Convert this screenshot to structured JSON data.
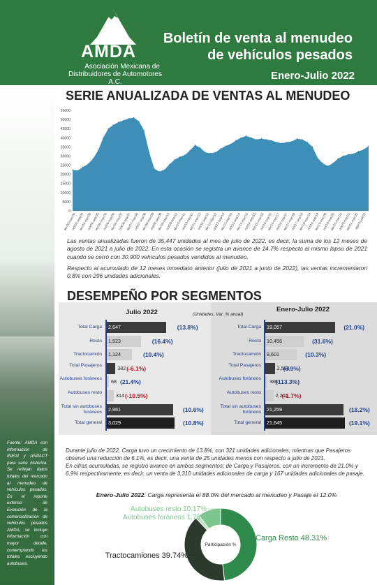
{
  "header": {
    "logo_text": "AMDA",
    "logo_sub1": "Asociación Mexicana de",
    "logo_sub2": "Distribuidores de Automotores A.C.",
    "title_line1": "Boletín de venta al menudeo",
    "title_line2": "de vehículos pesados",
    "period": "Enero-Julio 2022"
  },
  "colors": {
    "brand_green": "#2f7a3f",
    "area_blue": "#3d8fb8",
    "dark_bar": "#3a3a3a",
    "light_bar": "#cfcfcf",
    "label_blue": "#1f3f8f",
    "negative_red": "#b0122a"
  },
  "source_note": "Fuente: AMDA con información de INEGI y ANPACT para serie histórica. Se reflejan datos totales del mercado al menudeo de vehículos pesados. En el reporte extenso de Evolución de la comercialización de vehículos pesados AMDA, se incluye información con mayor detalle, contemplando los totales excluyendo autobuses.",
  "section1": {
    "title": "SERIE ANUALIZADA DE VENTAS AL MENUDEO",
    "paragraph": "Las ventas anualizadas fueron de 35,447 unidades al mes de julio de 2022, es decir, la suma de los 12 meses de agosto de 2021 a julio de 2022. En esta ocasión se registra un avance de 14.7% respecto al mismo lapso de 2021 cuando se cerró con 30,900 vehículos pesados vendidos al menudeo.",
    "paragraph2": "Respecto al acumulado de 12 meses inmediato anterior (julio  de 2021 a junio de 2022), las ventas incrementaron 0.8% con 296 unidades adicionales."
  },
  "section2": {
    "title": "DESEMPEÑO POR SEGMENTOS",
    "col_left": "Julio 2022",
    "col_right": "Enero-Julio 2022",
    "unit_note": "(Unidades, Var. % anual)",
    "rows": [
      {
        "label": "Total Carga",
        "jul_val": "2,647",
        "jul_pct": "(13.8%)",
        "acc_val": "19,057",
        "acc_pct": "(21.0%)",
        "jul_num": 2647,
        "acc_num": 19057,
        "dark": true
      },
      {
        "label": "Resto",
        "jul_val": "1,523",
        "jul_pct": "(16.4%)",
        "acc_val": "10,456",
        "acc_pct": "(31.6%)",
        "jul_num": 1523,
        "acc_num": 10456,
        "dark": false
      },
      {
        "label": "Tractocamión",
        "jul_val": "1,124",
        "jul_pct": "(10.4%)",
        "acc_val": "8,601",
        "acc_pct": "(10.3%)",
        "jul_num": 1124,
        "acc_num": 8601,
        "dark": false
      },
      {
        "label": "Total Pasajeros",
        "jul_val": "382",
        "jul_pct": "(-6.1%)",
        "acc_val": "2,588",
        "acc_pct": "(6.9%)",
        "jul_num": 382,
        "acc_num": 2588,
        "dark": true,
        "jul_neg": true
      },
      {
        "label": "Autobuses foráneos",
        "label_acc": "Autobuses foráneos",
        "jul_val": "68",
        "jul_pct": "(21.4%)",
        "acc_val": "386",
        "acc_pct": "(113.3%)",
        "jul_num": 68,
        "acc_num": 386,
        "dark": false
      },
      {
        "label": "Autobuses resto",
        "jul_val": "314",
        "jul_pct": "(-10.5%)",
        "acc_val": "2,202",
        "acc_pct": "(-1.7%)",
        "jul_num": 314,
        "acc_num": 2202,
        "dark": false,
        "jul_neg": true,
        "acc_neg": true
      },
      {
        "label": "Total sin autobuses foráneos",
        "jul_val": "2,961",
        "jul_pct": "(10.6%)",
        "acc_val": "21,259",
        "acc_pct": "(18.2%)",
        "jul_num": 2961,
        "acc_num": 21259,
        "dark": true
      },
      {
        "label": "Total general",
        "jul_val": "3,029",
        "jul_pct": "(10.8%)",
        "acc_val": "21,645",
        "acc_pct": "(19.1%)",
        "jul_num": 3029,
        "acc_num": 21645,
        "dark": true,
        "black": true
      }
    ],
    "paragraph1": "Durante julio de 2022, Carga tuvo un crecimiento de 13.8%, con 321 unidades adicionales, mientras que Pasajeros observó una reducción de 6.1%, es decir, una venta de 25 unidades menos con respecto a julio de 2021.",
    "paragraph2": "En cifras acumuladas, se registró avance en ambos segmentos: de Carga y Pasajeros, con un incremento de 21.0% y 6.9% respectivamente, es decir, un venta de 3,310 unidades adicionales de carga y 167 unidades adicionales de pasaje."
  },
  "section3": {
    "title_bold": "Enero-Julio 2022",
    "title_rest": ": Carga representa el 88.0% del mercado al menudeo y Pasaje el 12.0%",
    "center_label": "Participación %"
  },
  "chart_data": [
    {
      "type": "area",
      "title": "",
      "ylim": [
        0,
        55000
      ],
      "yticks": [
        "55000",
        "50000",
        "45000",
        "40000",
        "35000",
        "30000",
        "25000",
        "20000",
        "15000",
        "10000",
        "5000",
        "0"
      ],
      "xticks": [
        "abr/03-mar/04",
        "oct/03-sep/04",
        "abr/04-mar/05",
        "oct/04-sep/05",
        "abr/05-mar/06",
        "oct/05-sep/06",
        "abr/06-mar/07",
        "oct/06-sep/07",
        "abr/07-mar/08",
        "oct/07-sep/08",
        "abr/08-mar/09",
        "oct/08-sep/09",
        "abr/09-mar/10",
        "oct/09-sep/10",
        "abr/10-mar/11",
        "oct/10-sep/11",
        "abr/11-mar/12",
        "oct/11-sep/12",
        "abr/12-mar/13",
        "oct/12-sep/13",
        "abr/13-mar/14",
        "oct/13-sep/14",
        "abr/14-mar/15",
        "oct/14-sep/15",
        "abr/15-mar/16",
        "oct/15-sep/16",
        "abr/16-mar/17",
        "oct/16-sep/17",
        "abr/17-mar/18",
        "oct/17-sep/18",
        "abr/18-mar/19",
        "oct/18-sep/19",
        "abr/19-mar/20",
        "oct/19-sep/20",
        "abr/20-mar/21",
        "oct/20-sep/21",
        "abr/21-mar/22",
        "ago/21-jul/22"
      ],
      "values": [
        22500,
        22000,
        24000,
        25500,
        28500,
        33000,
        40000,
        45000,
        47000,
        48500,
        49500,
        50500,
        51000,
        49000,
        44000,
        32000,
        23000,
        21500,
        22500,
        25500,
        28000,
        29500,
        30500,
        33000,
        36000,
        34500,
        32000,
        31500,
        32000,
        34000,
        35500,
        36500,
        38500,
        40000,
        41000,
        40000,
        39000,
        39500,
        39000,
        38500,
        37500,
        37000,
        37500,
        38000,
        39500,
        39000,
        37500,
        35000,
        29000,
        26000,
        24500,
        26000,
        28500,
        30000,
        30800,
        31200,
        32500,
        33500,
        35447
      ],
      "grid": false
    },
    {
      "type": "pie",
      "slices": [
        {
          "name": "Carga Resto",
          "value": 48.31,
          "label": "Carga Resto 48.31%",
          "color": "#2e8b4b"
        },
        {
          "name": "Tractocamiones",
          "value": 39.74,
          "label": "Tractocamiones 39.74%",
          "color": "#2c3a2c"
        },
        {
          "name": "Autobuses foráneos",
          "value": 1.78,
          "label": "Autobuses foráneos 1.78%",
          "color": "#bfe3c8"
        },
        {
          "name": "Autobuses resto",
          "value": 10.17,
          "label": "Autobuses resto 10.17%",
          "color": "#7dc68e"
        }
      ]
    }
  ]
}
